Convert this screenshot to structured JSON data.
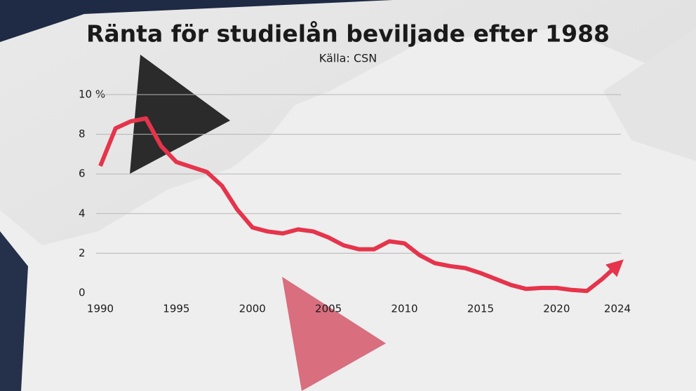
{
  "chart_data": {
    "type": "line",
    "title": "Ränta för studielån beviljade efter 1988",
    "subtitle": "Källa: CSN",
    "x": [
      1990,
      1991,
      1992,
      1993,
      1994,
      1995,
      1996,
      1997,
      1998,
      1999,
      2000,
      2001,
      2002,
      2003,
      2004,
      2005,
      2006,
      2007,
      2008,
      2009,
      2010,
      2011,
      2012,
      2013,
      2014,
      2015,
      2016,
      2017,
      2018,
      2019,
      2020,
      2021,
      2022,
      2023,
      2024
    ],
    "values": [
      6.4,
      8.3,
      8.65,
      8.8,
      7.4,
      6.6,
      6.35,
      6.1,
      5.4,
      4.2,
      3.3,
      3.1,
      3.0,
      3.2,
      3.1,
      2.8,
      2.4,
      2.2,
      2.2,
      2.6,
      2.5,
      1.9,
      1.5,
      1.35,
      1.25,
      1.0,
      0.7,
      0.4,
      0.2,
      0.25,
      0.25,
      0.15,
      0.1,
      0.7,
      1.4
    ],
    "color": "#e5344b",
    "xlim": [
      1990,
      2024
    ],
    "xticks": [
      1990,
      1995,
      2000,
      2005,
      2010,
      2015,
      2020,
      2024
    ],
    "ylim": [
      0,
      10
    ],
    "yticks": [
      0,
      2,
      4,
      6,
      8,
      {
        "value": 10,
        "label": "10 %"
      }
    ],
    "grid": true
  }
}
